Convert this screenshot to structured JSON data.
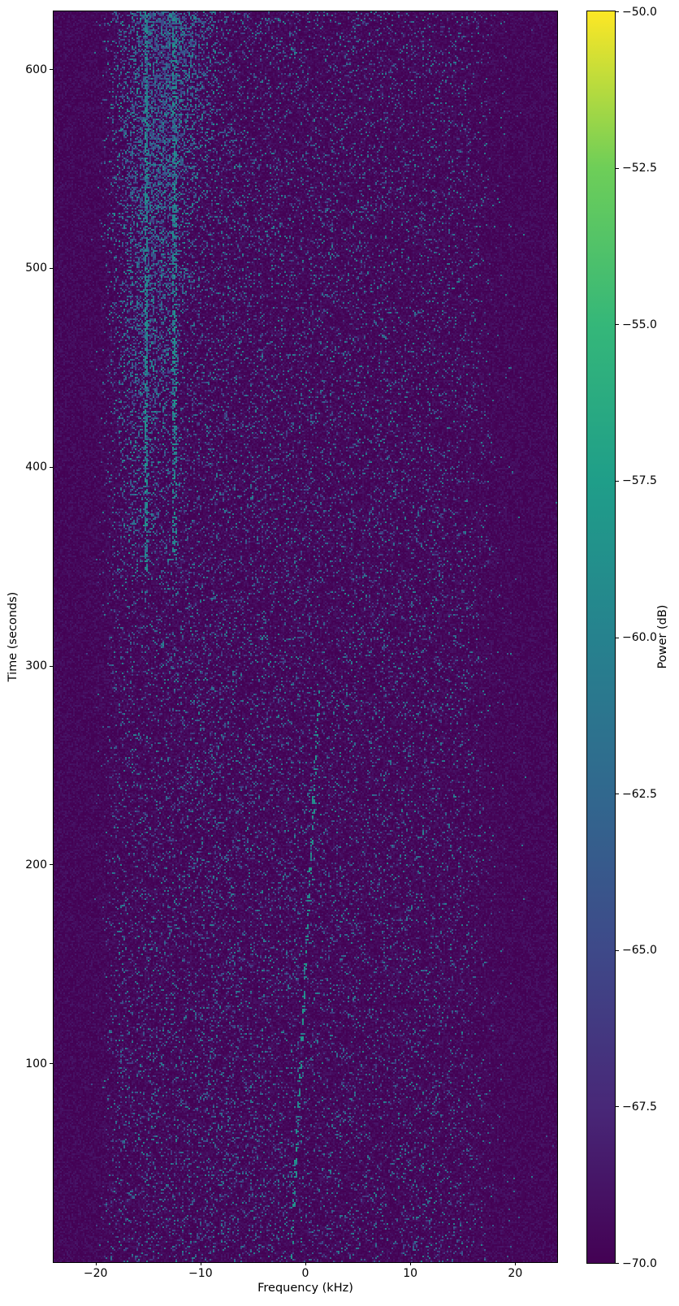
{
  "chart_data": {
    "type": "heatmap",
    "subtype": "waterfall-spectrogram",
    "title": "",
    "xlabel": "Frequency (kHz)",
    "ylabel": "Time (seconds)",
    "colorbar_label": "Power (dB)",
    "xlim": [
      -24,
      24
    ],
    "ylim": [
      0,
      629
    ],
    "clim": [
      -70,
      -50
    ],
    "colormap": "viridis",
    "grid": false,
    "legend": "none",
    "x_ticks": [
      {
        "v": -20,
        "label": "−20"
      },
      {
        "v": -10,
        "label": "−10"
      },
      {
        "v": 0,
        "label": "0"
      },
      {
        "v": 10,
        "label": "10"
      },
      {
        "v": 20,
        "label": "20"
      }
    ],
    "y_ticks": [
      {
        "v": 100,
        "label": "100"
      },
      {
        "v": 200,
        "label": "200"
      },
      {
        "v": 300,
        "label": "300"
      },
      {
        "v": 400,
        "label": "400"
      },
      {
        "v": 500,
        "label": "500"
      },
      {
        "v": 600,
        "label": "600"
      }
    ],
    "colorbar_ticks": [
      {
        "v": -50.0,
        "label": "−50.0"
      },
      {
        "v": -52.5,
        "label": "−52.5"
      },
      {
        "v": -55.0,
        "label": "−55.0"
      },
      {
        "v": -57.5,
        "label": "−57.5"
      },
      {
        "v": -60.0,
        "label": "−60.0"
      },
      {
        "v": -62.5,
        "label": "−62.5"
      },
      {
        "v": -65.0,
        "label": "−65.0"
      },
      {
        "v": -67.5,
        "label": "−67.5"
      },
      {
        "v": -70.0,
        "label": "−70.0"
      }
    ],
    "viridis_stops": [
      [
        0.0,
        "#440154"
      ],
      [
        0.125,
        "#482878"
      ],
      [
        0.25,
        "#3e4989"
      ],
      [
        0.375,
        "#31688e"
      ],
      [
        0.5,
        "#26828e"
      ],
      [
        0.625,
        "#1f9e89"
      ],
      [
        0.75,
        "#35b779"
      ],
      [
        0.875,
        "#6ece58"
      ],
      [
        1.0,
        "#fde725"
      ]
    ],
    "description": "Noise-floor spectrogram near -70 dB with sparse blue/teal speckle. Dark guard bands below -19 kHz and above +17 kHz. A broadband noise blob centered near -15 kHz appears above t≈350 s, widening and brightening toward the top, with narrowband tones near -15.2 and -12.5 kHz. A faint dashed drifting tone sweeps from ≈ -1.3 kHz at t=0 to ≈ +1.3 kHz at t≈290 s.",
    "noise_model": {
      "seed": 1337,
      "grid_cols": 310,
      "grid_rows": 770,
      "base_db": -70,
      "base_jitter_db": 1.4,
      "speckle_offset_db": 3.5,
      "speckle_range_db": 7.0,
      "p_base": 0.105,
      "bump_center_khz": -9,
      "bump_sigma_khz": 8,
      "bump_amp": 0.3,
      "left_edge_khz": -18.8,
      "left_soft_khz": 0.4,
      "right_edge_khz": 16.8,
      "right_soft_khz": 1.0,
      "blob": {
        "t_start": 338,
        "t_full": 632,
        "f_center_start": -16.2,
        "f_center_end": -13.2,
        "sigma_start": 1.4,
        "sigma_end": 4.0,
        "amp": 0.5,
        "grow_pow": 0.65,
        "extra_db": 1.5
      },
      "traces": [
        {
          "f": -15.15,
          "t_start": 348,
          "half_width": 0.17,
          "p": 0.55,
          "db_min": -62,
          "db_span": 4
        },
        {
          "f": -12.45,
          "t_start": 352,
          "half_width": 0.17,
          "p": 0.42,
          "db_min": -62,
          "db_span": 4
        }
      ],
      "chirp": {
        "f0": -1.35,
        "f1": 1.35,
        "t0": 2,
        "t1": 292,
        "half_width": 0.12,
        "p": 0.6,
        "db_min": -60.5,
        "db_span": 3
      }
    }
  }
}
